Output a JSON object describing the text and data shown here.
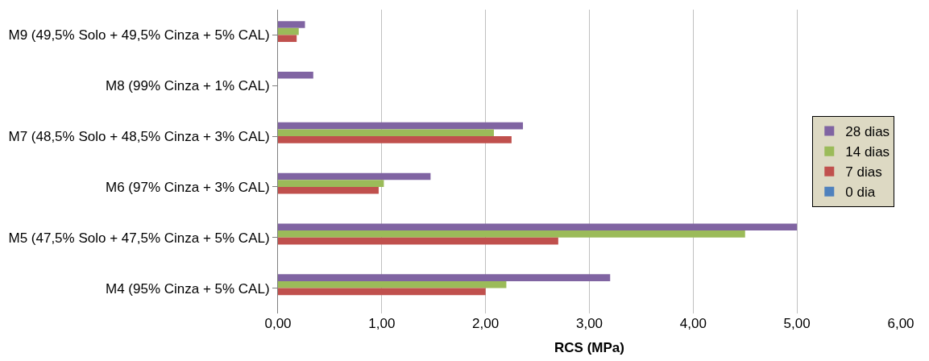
{
  "chart_data": {
    "type": "bar",
    "orientation": "horizontal",
    "xlabel": "RCS (MPa)",
    "categories": [
      "M9 (49,5% Solo + 49,5% Cinza + 5% CAL)",
      "M8 (99% Cinza + 1% CAL)",
      "M7 (48,5% Solo + 48,5% Cinza + 3% CAL)",
      "M6 (97% Cinza + 3% CAL)",
      "M5 (47,5% Solo + 47,5% Cinza + 5% CAL)",
      "M4 (95% Cinza + 5% CAL)"
    ],
    "series": [
      {
        "name": "28 dias",
        "color": "#8064a2",
        "values": [
          0.26,
          0.34,
          2.36,
          1.47,
          5.0,
          3.2
        ]
      },
      {
        "name": "14 dias",
        "color": "#9bbb59",
        "values": [
          0.2,
          0,
          2.08,
          1.02,
          4.5,
          2.2
        ]
      },
      {
        "name": "7 dias",
        "color": "#c0504d",
        "values": [
          0.18,
          0,
          2.25,
          0.97,
          2.7,
          2.0
        ]
      },
      {
        "name": "0 dia",
        "color": "#4f81bd",
        "values": [
          0,
          0,
          0,
          0,
          0,
          0
        ]
      }
    ],
    "xlim": [
      0,
      6
    ],
    "xticks": [
      {
        "value": 0,
        "label": "0,00"
      },
      {
        "value": 1,
        "label": "1,00"
      },
      {
        "value": 2,
        "label": "2,00"
      },
      {
        "value": 3,
        "label": "3,00"
      },
      {
        "value": 4,
        "label": "4,00"
      },
      {
        "value": 5,
        "label": "5,00"
      },
      {
        "value": 6,
        "label": "6,00"
      }
    ],
    "grid": "x",
    "legend": "right"
  }
}
